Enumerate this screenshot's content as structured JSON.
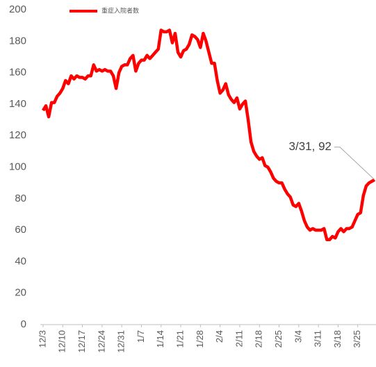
{
  "chart_data": {
    "type": "line",
    "legend": "top-left",
    "annotation": "3/31, 92",
    "categories": [
      "12/3",
      null,
      null,
      null,
      null,
      null,
      null,
      "12/10",
      null,
      null,
      null,
      null,
      null,
      null,
      "12/17",
      null,
      null,
      null,
      null,
      null,
      null,
      "12/24",
      null,
      null,
      null,
      null,
      null,
      null,
      "12/31",
      null,
      null,
      null,
      null,
      null,
      null,
      "1/7",
      null,
      null,
      null,
      null,
      null,
      null,
      "1/14",
      null,
      null,
      null,
      null,
      null,
      null,
      "1/21",
      null,
      null,
      null,
      null,
      null,
      null,
      "1/28",
      null,
      null,
      null,
      null,
      null,
      null,
      "2/4",
      null,
      null,
      null,
      null,
      null,
      null,
      "2/11",
      null,
      null,
      null,
      null,
      null,
      null,
      "2/18",
      null,
      null,
      null,
      null,
      null,
      null,
      "2/25",
      null,
      null,
      null,
      null,
      null,
      null,
      "3/4",
      null,
      null,
      null,
      null,
      null,
      null,
      "3/11",
      null,
      null,
      null,
      null,
      null,
      null,
      "3/18",
      null,
      null,
      null,
      null,
      null,
      null,
      "3/25",
      null,
      null,
      null,
      null,
      null,
      null
    ],
    "series": [
      {
        "name": "重症入院者数",
        "color": "#ff0000",
        "values": [
          136,
          139,
          132,
          141,
          141,
          145,
          147,
          150,
          155,
          153,
          158,
          156,
          158,
          157,
          157,
          156,
          158,
          158,
          165,
          161,
          162,
          161,
          162,
          161,
          161,
          158,
          150,
          160,
          164,
          165,
          165,
          169,
          171,
          161,
          166,
          168,
          168,
          171,
          169,
          171,
          173,
          175,
          187,
          186,
          186,
          187,
          179,
          185,
          173,
          170,
          174,
          175,
          178,
          184,
          183,
          181,
          176,
          185,
          180,
          173,
          166,
          166,
          155,
          147,
          149,
          153,
          146,
          143,
          141,
          144,
          137,
          140,
          142,
          130,
          116,
          110,
          107,
          105,
          106,
          101,
          100,
          97,
          93,
          91,
          90,
          90,
          86,
          83,
          81,
          76,
          75,
          77,
          72,
          66,
          62,
          60,
          61,
          60,
          60,
          60,
          61,
          54,
          54,
          56,
          55,
          59,
          61,
          59,
          61,
          61,
          62,
          66,
          70,
          71,
          82,
          88,
          90,
          91,
          92
        ]
      }
    ],
    "ylim": [
      0,
      200
    ],
    "yticks": [
      0,
      20,
      40,
      60,
      80,
      100,
      120,
      140,
      160,
      180,
      200
    ],
    "grid": false
  }
}
